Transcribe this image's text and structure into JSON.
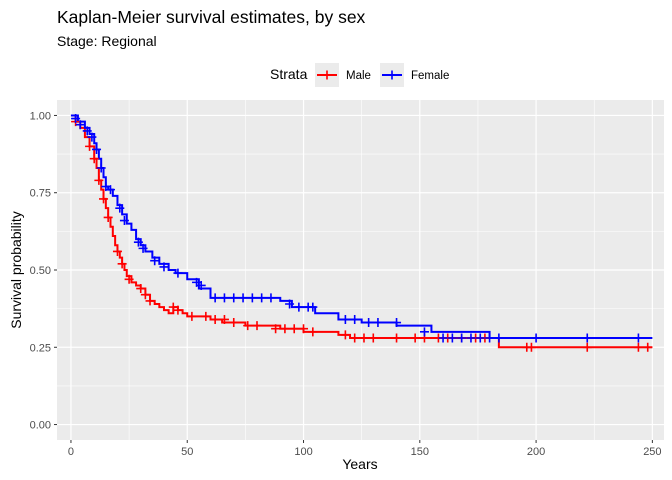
{
  "chart_data": {
    "type": "line",
    "title": "Kaplan-Meier survival estimates, by sex",
    "subtitle": "Stage: Regional",
    "xlabel": "Years",
    "ylabel": "Survival probability",
    "xlim": [
      -6,
      255
    ],
    "ylim": [
      -0.05,
      1.05
    ],
    "x_ticks": [
      0,
      50,
      100,
      150,
      200,
      250
    ],
    "y_ticks": [
      0.0,
      0.25,
      0.5,
      0.75,
      1.0
    ],
    "y_tick_labels": [
      "0.00",
      "0.25",
      "0.50",
      "0.75",
      "1.00"
    ],
    "grid": true,
    "legend": {
      "title": "Strata",
      "position": "top"
    },
    "series": [
      {
        "name": "Male",
        "color": "#FF0000",
        "x": [
          0,
          2,
          4,
          6,
          8,
          10,
          11,
          12,
          13,
          14,
          15,
          16,
          17,
          18,
          19,
          20,
          21,
          22,
          23,
          24,
          26,
          28,
          30,
          32,
          34,
          36,
          38,
          40,
          42,
          44,
          46,
          48,
          50,
          55,
          60,
          65,
          70,
          75,
          80,
          90,
          100,
          105,
          115,
          120,
          180,
          184,
          250
        ],
        "y": [
          1.0,
          0.98,
          0.96,
          0.93,
          0.9,
          0.86,
          0.83,
          0.79,
          0.76,
          0.73,
          0.7,
          0.67,
          0.64,
          0.61,
          0.58,
          0.56,
          0.54,
          0.52,
          0.5,
          0.48,
          0.46,
          0.45,
          0.44,
          0.42,
          0.4,
          0.39,
          0.38,
          0.37,
          0.36,
          0.38,
          0.37,
          0.36,
          0.35,
          0.35,
          0.34,
          0.33,
          0.33,
          0.32,
          0.32,
          0.31,
          0.3,
          0.3,
          0.29,
          0.28,
          0.28,
          0.25,
          0.25
        ],
        "censored": [
          [
            2,
            0.98
          ],
          [
            8,
            0.9
          ],
          [
            10,
            0.86
          ],
          [
            12,
            0.79
          ],
          [
            14,
            0.73
          ],
          [
            16,
            0.67
          ],
          [
            20,
            0.56
          ],
          [
            22,
            0.52
          ],
          [
            25,
            0.47
          ],
          [
            30,
            0.44
          ],
          [
            32,
            0.42
          ],
          [
            34,
            0.4
          ],
          [
            44,
            0.38
          ],
          [
            46,
            0.37
          ],
          [
            52,
            0.35
          ],
          [
            58,
            0.35
          ],
          [
            62,
            0.34
          ],
          [
            66,
            0.34
          ],
          [
            70,
            0.33
          ],
          [
            76,
            0.32
          ],
          [
            80,
            0.32
          ],
          [
            88,
            0.31
          ],
          [
            92,
            0.31
          ],
          [
            96,
            0.31
          ],
          [
            100,
            0.31
          ],
          [
            104,
            0.3
          ],
          [
            118,
            0.29
          ],
          [
            122,
            0.28
          ],
          [
            126,
            0.28
          ],
          [
            130,
            0.28
          ],
          [
            140,
            0.28
          ],
          [
            148,
            0.28
          ],
          [
            152,
            0.28
          ],
          [
            158,
            0.28
          ],
          [
            162,
            0.28
          ],
          [
            168,
            0.28
          ],
          [
            174,
            0.28
          ],
          [
            178,
            0.28
          ],
          [
            196,
            0.25
          ],
          [
            198,
            0.25
          ],
          [
            222,
            0.25
          ],
          [
            244,
            0.25
          ],
          [
            248,
            0.25
          ]
        ]
      },
      {
        "name": "Female",
        "color": "#0000FF",
        "x": [
          0,
          3,
          6,
          8,
          10,
          11,
          12,
          13,
          14,
          15,
          16,
          18,
          20,
          22,
          24,
          26,
          28,
          30,
          32,
          35,
          38,
          42,
          45,
          50,
          55,
          60,
          65,
          70,
          75,
          85,
          90,
          95,
          100,
          105,
          115,
          125,
          135,
          140,
          155,
          180,
          250
        ],
        "y": [
          1.0,
          0.98,
          0.96,
          0.94,
          0.91,
          0.89,
          0.86,
          0.83,
          0.8,
          0.77,
          0.76,
          0.74,
          0.71,
          0.68,
          0.65,
          0.63,
          0.6,
          0.58,
          0.56,
          0.54,
          0.52,
          0.5,
          0.49,
          0.47,
          0.44,
          0.41,
          0.41,
          0.41,
          0.41,
          0.41,
          0.4,
          0.38,
          0.38,
          0.36,
          0.34,
          0.33,
          0.33,
          0.32,
          0.3,
          0.28,
          0.28
        ],
        "censored": [
          [
            2,
            0.99
          ],
          [
            4,
            0.97
          ],
          [
            7,
            0.95
          ],
          [
            9,
            0.93
          ],
          [
            11,
            0.89
          ],
          [
            13,
            0.83
          ],
          [
            15,
            0.77
          ],
          [
            17,
            0.76
          ],
          [
            21,
            0.7
          ],
          [
            23,
            0.66
          ],
          [
            29,
            0.59
          ],
          [
            31,
            0.57
          ],
          [
            36,
            0.53
          ],
          [
            40,
            0.51
          ],
          [
            46,
            0.49
          ],
          [
            54,
            0.46
          ],
          [
            56,
            0.45
          ],
          [
            62,
            0.41
          ],
          [
            66,
            0.41
          ],
          [
            70,
            0.41
          ],
          [
            74,
            0.41
          ],
          [
            78,
            0.41
          ],
          [
            82,
            0.41
          ],
          [
            86,
            0.41
          ],
          [
            94,
            0.39
          ],
          [
            98,
            0.38
          ],
          [
            102,
            0.38
          ],
          [
            104,
            0.38
          ],
          [
            118,
            0.34
          ],
          [
            122,
            0.34
          ],
          [
            128,
            0.33
          ],
          [
            132,
            0.33
          ],
          [
            140,
            0.33
          ],
          [
            152,
            0.3
          ],
          [
            160,
            0.28
          ],
          [
            164,
            0.28
          ],
          [
            168,
            0.28
          ],
          [
            172,
            0.28
          ],
          [
            176,
            0.28
          ],
          [
            180,
            0.28
          ],
          [
            184,
            0.28
          ],
          [
            200,
            0.28
          ],
          [
            222,
            0.28
          ],
          [
            244,
            0.28
          ]
        ]
      }
    ]
  }
}
